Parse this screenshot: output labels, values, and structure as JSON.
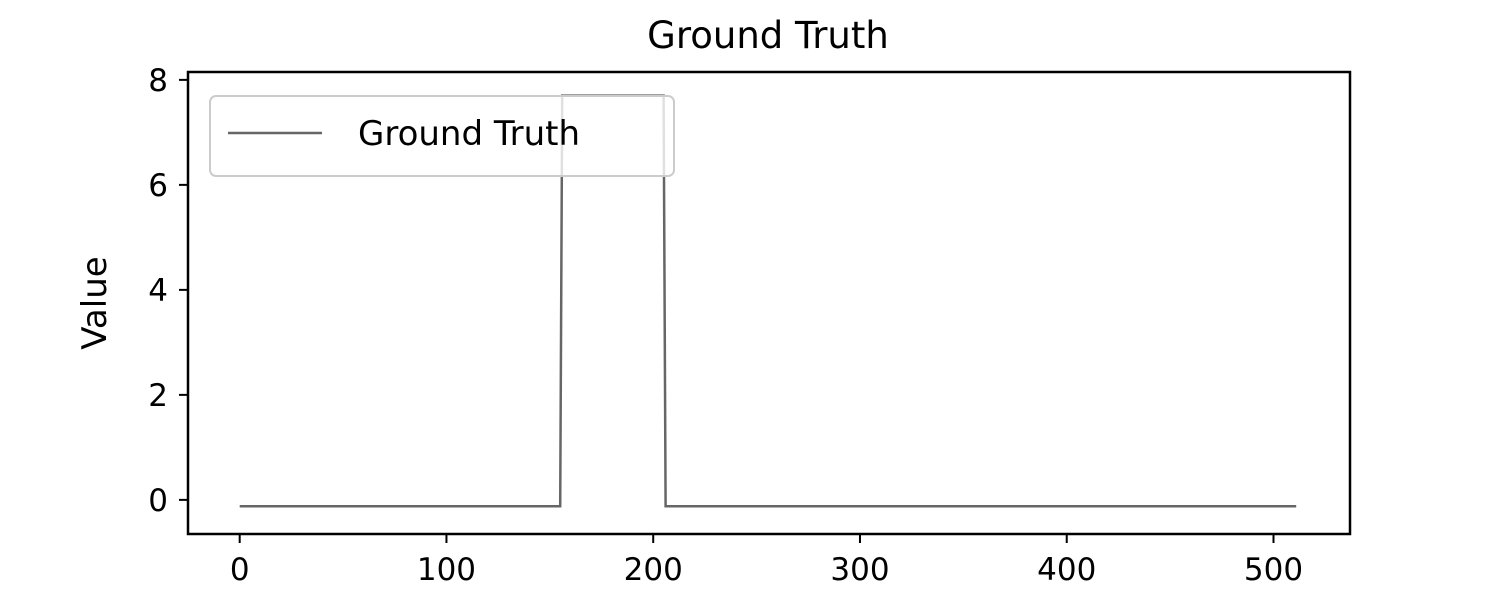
{
  "chart_data": {
    "type": "line",
    "title": "Ground Truth",
    "xlabel": "",
    "ylabel": "Value",
    "xlim": [
      -25,
      537
    ],
    "ylim": [
      -0.65,
      8.15
    ],
    "xticks": [
      0,
      100,
      200,
      300,
      400,
      500
    ],
    "yticks": [
      0,
      2,
      4,
      6,
      8
    ],
    "grid": false,
    "legend_position": "top-left",
    "series": [
      {
        "name": "Ground Truth",
        "color": "#666666",
        "x": [
          0,
          155,
          156,
          205,
          206,
          511
        ],
        "y": [
          -0.12,
          -0.12,
          7.7,
          7.7,
          -0.12,
          -0.12
        ]
      }
    ]
  }
}
